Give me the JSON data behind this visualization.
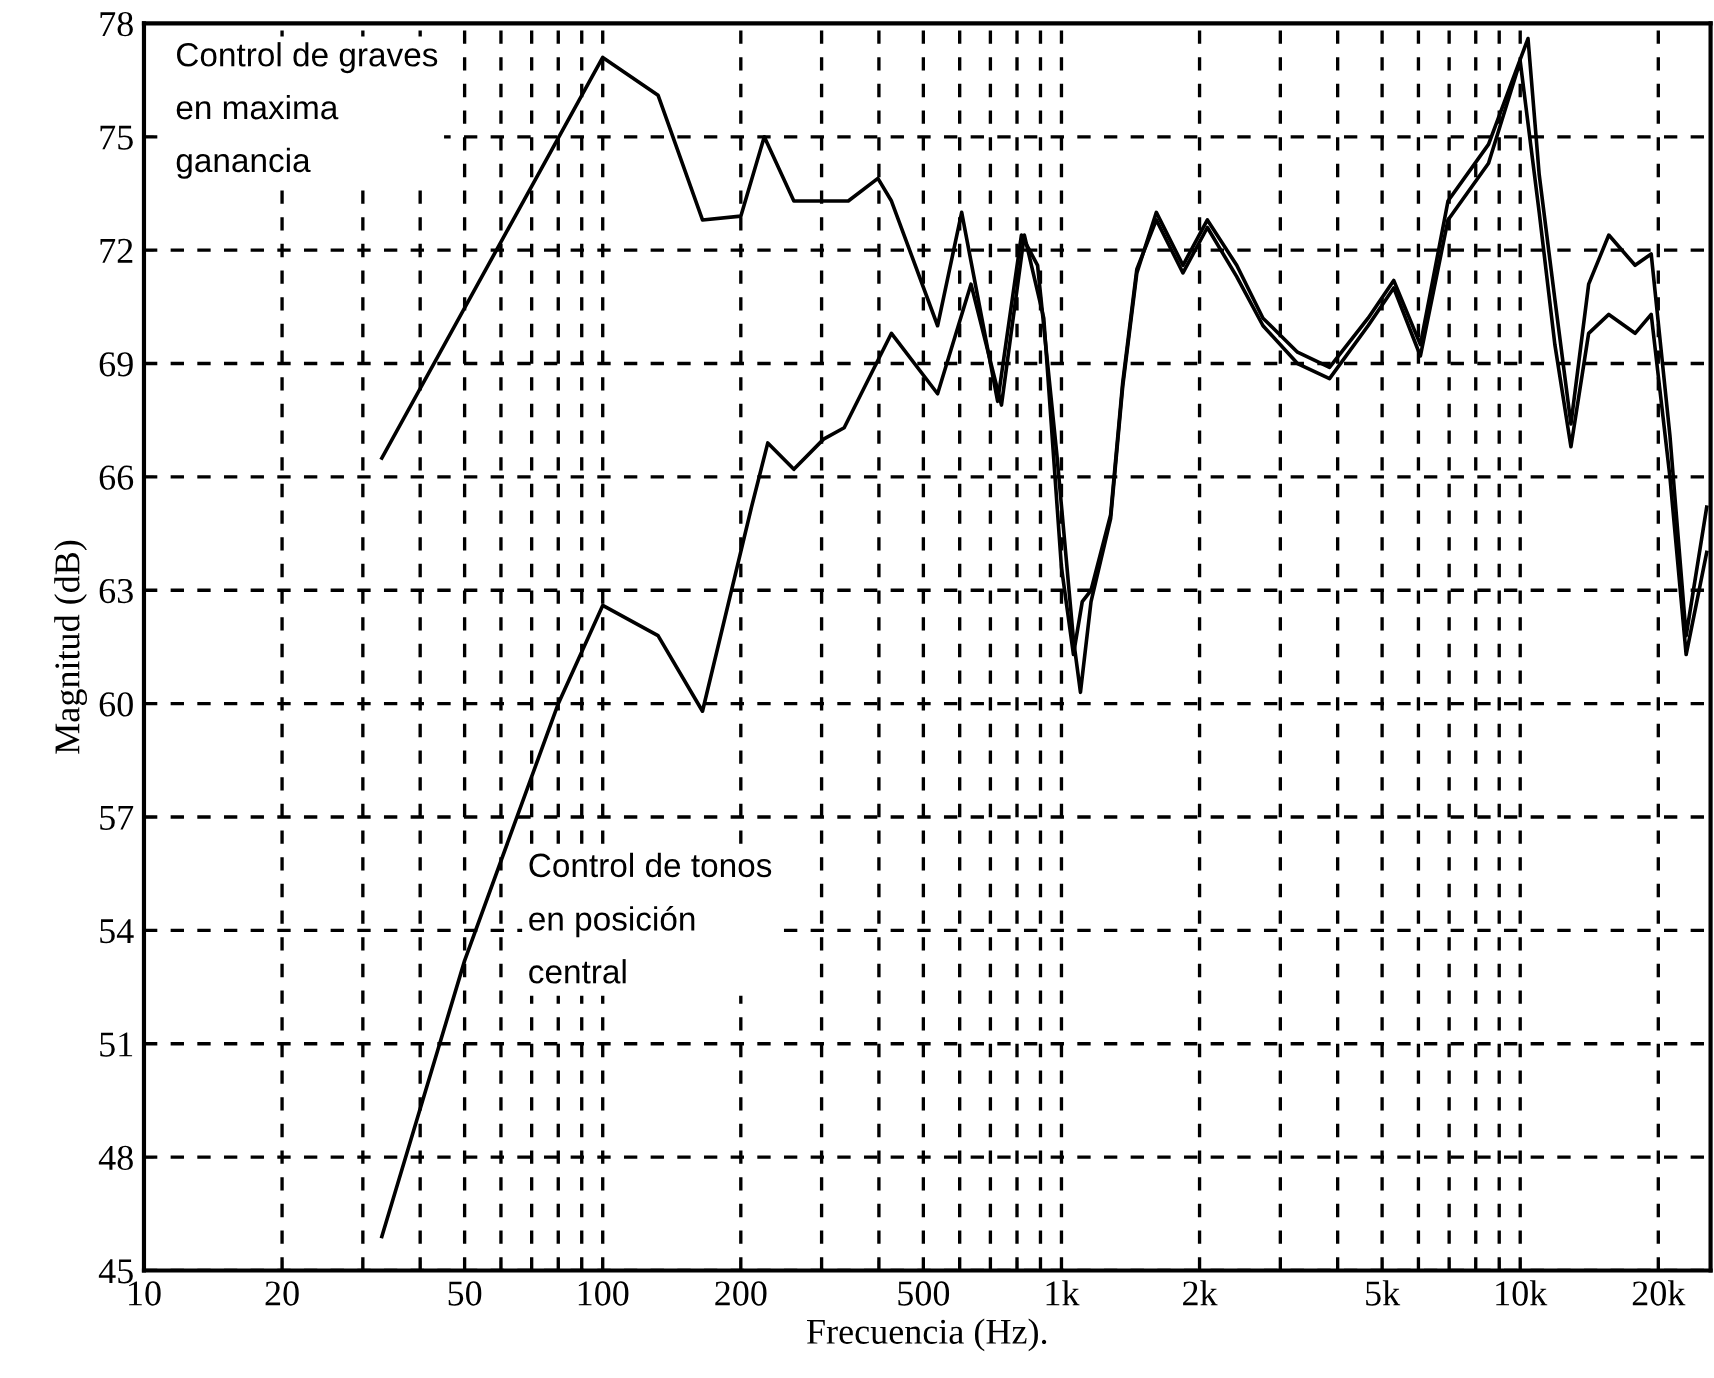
{
  "chart_data": {
    "type": "line",
    "xlabel": "Frecuencia (Hz).",
    "ylabel": "Magnitud (dB)",
    "log": "x",
    "xlim": [
      10,
      26000
    ],
    "ylim": [
      45,
      78
    ],
    "xticks": [
      10,
      20,
      {
        "value": 30,
        "label": null
      },
      {
        "value": 40,
        "label": null
      },
      50,
      {
        "value": 60,
        "label": null
      },
      {
        "value": 70,
        "label": null
      },
      {
        "value": 80,
        "label": null
      },
      {
        "value": 90,
        "label": null
      },
      100,
      200,
      {
        "value": 300,
        "label": null
      },
      {
        "value": 400,
        "label": null
      },
      500,
      {
        "value": 600,
        "label": null
      },
      {
        "value": 700,
        "label": null
      },
      {
        "value": 800,
        "label": null
      },
      {
        "value": 900,
        "label": null
      },
      {
        "value": 1000,
        "label": "1k"
      },
      {
        "value": 2000,
        "label": "2k"
      },
      {
        "value": 3000,
        "label": null
      },
      {
        "value": 4000,
        "label": null
      },
      {
        "value": 5000,
        "label": "5k"
      },
      {
        "value": 6000,
        "label": null
      },
      {
        "value": 7000,
        "label": null
      },
      {
        "value": 8000,
        "label": null
      },
      {
        "value": 9000,
        "label": null
      },
      {
        "value": 10000,
        "label": "10k"
      },
      {
        "value": 20000,
        "label": "20k"
      }
    ],
    "yticks": [
      45,
      48,
      51,
      54,
      57,
      60,
      63,
      66,
      69,
      72,
      75,
      78
    ],
    "grid": true,
    "line_style": "solid",
    "marker": "none",
    "legend": false,
    "series": [
      {
        "name": "Control de graves\nen maxima\nganancia",
        "color": "#000000",
        "x": [
          33,
          100,
          132,
          165,
          200,
          225,
          261,
          343,
          398,
          426,
          537,
          606,
          726,
          818,
          887,
          977,
          1062,
          1100,
          1160,
          1280,
          1360,
          1460,
          1610,
          1840,
          2080,
          2410,
          2750,
          3270,
          3840,
          4660,
          5300,
          6060,
          6960,
          8530,
          10400,
          11000,
          11900,
          12900,
          14100,
          15600,
          17800,
          19300,
          21200,
          23000,
          25500
        ],
        "values": [
          66.5,
          77.1,
          76.1,
          72.8,
          72.9,
          75.0,
          73.3,
          73.3,
          73.9,
          73.3,
          70.0,
          73.0,
          68.0,
          72.4,
          71.6,
          66.6,
          61.7,
          60.3,
          62.7,
          64.9,
          68.4,
          71.4,
          73.0,
          71.6,
          72.8,
          71.6,
          70.2,
          69.3,
          68.9,
          70.2,
          71.2,
          69.5,
          73.3,
          74.8,
          77.6,
          74.0,
          70.7,
          67.4,
          71.1,
          72.4,
          71.6,
          71.9,
          67.1,
          61.8,
          65.2
        ]
      },
      {
        "name": "Control de tonos\nen posición\ncentral",
        "color": "#000000",
        "x": [
          33,
          50,
          80,
          100,
          132,
          165,
          211,
          229,
          261,
          303,
          336,
          426,
          537,
          635,
          740,
          830,
          915,
          1000,
          1062,
          1110,
          1160,
          1280,
          1360,
          1460,
          1610,
          1840,
          2080,
          2410,
          2750,
          3270,
          3840,
          4660,
          5300,
          6060,
          6960,
          8530,
          10000,
          11000,
          11900,
          12900,
          14100,
          15600,
          17800,
          19300,
          21200,
          23000,
          25500
        ],
        "values": [
          45.9,
          53.2,
          60.0,
          62.6,
          61.8,
          59.8,
          65.2,
          66.9,
          66.2,
          67.0,
          67.3,
          69.8,
          68.2,
          71.1,
          67.9,
          72.4,
          70.2,
          63.6,
          61.3,
          62.7,
          63.0,
          65.0,
          68.5,
          71.5,
          72.8,
          71.4,
          72.6,
          71.3,
          70.0,
          69.0,
          68.6,
          70.0,
          71.0,
          69.2,
          72.8,
          74.3,
          77.0,
          73.0,
          69.5,
          66.8,
          69.8,
          70.3,
          69.8,
          70.3,
          66.0,
          61.3,
          64.0
        ]
      }
    ]
  }
}
